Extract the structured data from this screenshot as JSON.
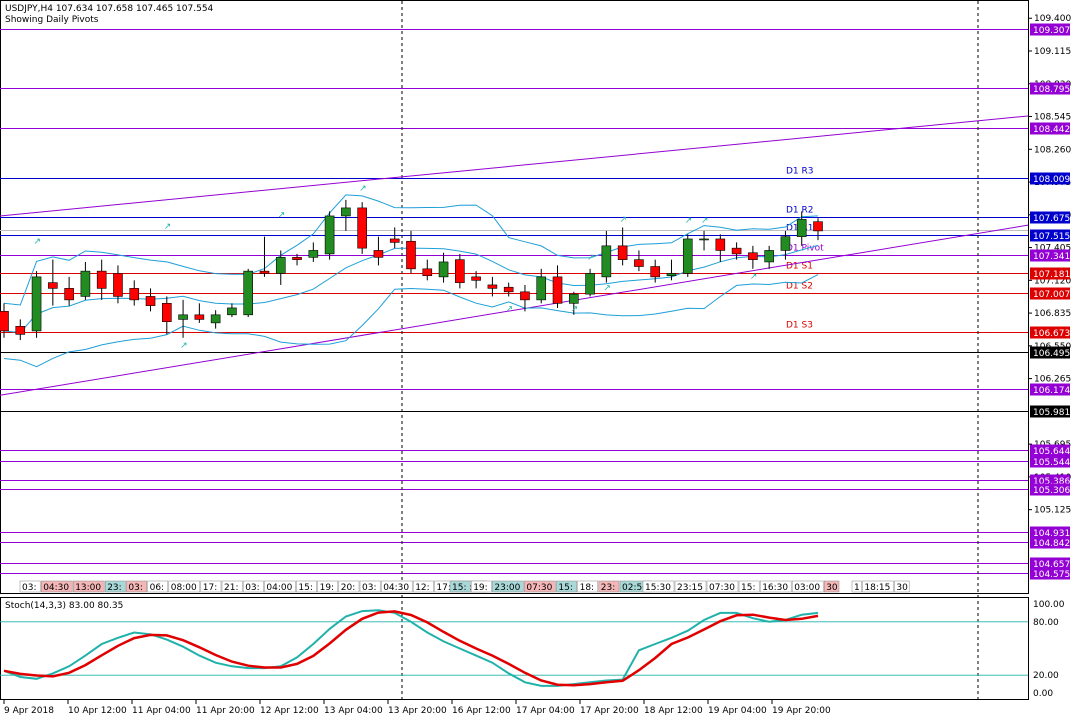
{
  "header": {
    "symbol_line": "USDJPY,H4  107.634 107.658 107.465 107.554",
    "subtitle": "Showing Daily Pivots"
  },
  "price_axis": {
    "ticks": [
      "109.400",
      "109.115",
      "108.830",
      "108.545",
      "108.260",
      "107.975",
      "107.690",
      "107.405",
      "107.120",
      "106.835",
      "106.550",
      "106.265",
      "105.695",
      "105.410",
      "105.125"
    ],
    "range": [
      104.4,
      109.55
    ]
  },
  "levels": [
    {
      "value": 109.307,
      "label": "109.307",
      "color": "#9400d3"
    },
    {
      "value": 108.795,
      "label": "108.795",
      "color": "#9400d3"
    },
    {
      "value": 108.442,
      "label": "108.442",
      "color": "#9400d3"
    },
    {
      "value": 108.009,
      "label": "108.009",
      "color": "#0000cd",
      "name": "D1  R3"
    },
    {
      "value": 107.675,
      "label": "107.675",
      "color": "#0000cd",
      "name": "D1  R2"
    },
    {
      "value": 107.515,
      "label": "107.515",
      "color": "#0000cd",
      "name": "D1  R1"
    },
    {
      "value": 107.341,
      "label": "107.341",
      "color": "#9400d3",
      "name": "D1  Pivot"
    },
    {
      "value": 107.181,
      "label": "107.181",
      "color": "#dc0000",
      "name": "D1  S1"
    },
    {
      "value": 107.007,
      "label": "107.007",
      "color": "#dc0000",
      "name": "D1  S2"
    },
    {
      "value": 106.673,
      "label": "106.673",
      "color": "#dc0000",
      "name": "D1  S3"
    },
    {
      "value": 106.495,
      "label": "106.495",
      "color": "#000000"
    },
    {
      "value": 106.174,
      "label": "106.174",
      "color": "#9400d3"
    },
    {
      "value": 105.981,
      "label": "105.981",
      "color": "#000000"
    },
    {
      "value": 105.644,
      "label": "105.644",
      "color": "#9400d3"
    },
    {
      "value": 105.544,
      "label": "105.544",
      "color": "#9400d3"
    },
    {
      "value": 105.386,
      "label": "105.386",
      "color": "#9400d3"
    },
    {
      "value": 105.306,
      "label": "105.306",
      "color": "#9400d3"
    },
    {
      "value": 104.931,
      "label": "104.931",
      "color": "#9400d3"
    },
    {
      "value": 104.842,
      "label": "104.842",
      "color": "#9400d3"
    },
    {
      "value": 104.657,
      "label": "104.657",
      "color": "#9400d3"
    },
    {
      "value": 104.575,
      "label": "104.575",
      "color": "#9400d3"
    }
  ],
  "current_price": "107.554",
  "time_labels": [
    "9 Apr 2018",
    "10 Apr 12:00",
    "11 Apr 04:00",
    "11 Apr 20:00",
    "12 Apr 12:00",
    "13 Apr 04:00",
    "13 Apr 20:00",
    "16 Apr 12:00",
    "17 Apr 04:00",
    "17 Apr 20:00",
    "18 Apr 12:00",
    "19 Apr 04:00",
    "19 Apr 20:00"
  ],
  "session_tags": [
    {
      "text": "03:",
      "color": "#ffffff"
    },
    {
      "text": "04:30",
      "color": "#f4b6b6"
    },
    {
      "text": "13:00",
      "color": "#f4b6b6"
    },
    {
      "text": "23:",
      "color": "#a8d8d8"
    },
    {
      "text": "03:",
      "color": "#f4b6b6"
    },
    {
      "text": "06:",
      "color": "#ffffff"
    },
    {
      "text": "08:00",
      "color": "#ffffff"
    },
    {
      "text": "17:",
      "color": "#ffffff"
    },
    {
      "text": "21:",
      "color": "#ffffff"
    },
    {
      "text": "03:",
      "color": "#ffffff"
    },
    {
      "text": "04:00",
      "color": "#ffffff"
    },
    {
      "text": "15:",
      "color": "#ffffff"
    },
    {
      "text": "19:",
      "color": "#ffffff"
    },
    {
      "text": "20:",
      "color": "#ffffff"
    },
    {
      "text": "03:",
      "color": "#ffffff"
    },
    {
      "text": "04:30",
      "color": "#ffffff"
    },
    {
      "text": "12:",
      "color": "#ffffff"
    },
    {
      "text": "17:",
      "color": "#ffffff"
    },
    {
      "text": "22:30",
      "color": "#ffffff"
    },
    {
      "text": "15:",
      "color": "#a8d8d8"
    },
    {
      "text": "19:",
      "color": "#ffffff"
    },
    {
      "text": "23:00",
      "color": "#a8d8d8"
    },
    {
      "text": "07:30",
      "color": "#f4b6b6"
    },
    {
      "text": "15:",
      "color": "#a8d8d8"
    },
    {
      "text": "18:",
      "color": "#ffffff"
    },
    {
      "text": "23:",
      "color": "#f4b6b6"
    },
    {
      "text": "02:50",
      "color": "#a8d8d8"
    },
    {
      "text": "15:30",
      "color": "#ffffff"
    },
    {
      "text": "23:15",
      "color": "#ffffff"
    },
    {
      "text": "07:30",
      "color": "#ffffff"
    },
    {
      "text": "15:",
      "color": "#ffffff"
    },
    {
      "text": "16:30",
      "color": "#ffffff"
    },
    {
      "text": "03:00",
      "color": "#ffffff"
    },
    {
      "text": "30",
      "color": "#f4b6b6"
    },
    {
      "text": "1",
      "color": "#ffffff"
    },
    {
      "text": "18:15",
      "color": "#ffffff"
    },
    {
      "text": "30",
      "color": "#ffffff"
    }
  ],
  "stoch": {
    "label": "Stoch(14,3,3) 83.00 80.35",
    "ticks": [
      "100.00",
      "80.00",
      "20.00",
      "0.00"
    ]
  },
  "colors": {
    "bull": "#228b22",
    "bear": "#ff0000",
    "bands": "#1e9fd8",
    "trend": "#9400d3",
    "stoch_main": "#20b2aa",
    "stoch_signal": "#e00000"
  },
  "chart_data": {
    "type": "candlestick",
    "title": "USDJPY,H4",
    "ohlc": [
      [
        106.85,
        106.92,
        106.62,
        106.68
      ],
      [
        106.72,
        106.78,
        106.6,
        106.65
      ],
      [
        106.68,
        107.2,
        106.62,
        107.15
      ],
      [
        107.1,
        107.3,
        106.9,
        107.05
      ],
      [
        107.05,
        107.15,
        106.9,
        106.95
      ],
      [
        106.98,
        107.28,
        106.95,
        107.2
      ],
      [
        107.2,
        107.3,
        106.95,
        107.05
      ],
      [
        107.18,
        107.25,
        106.92,
        106.98
      ],
      [
        107.05,
        107.12,
        106.9,
        106.95
      ],
      [
        106.98,
        107.05,
        106.85,
        106.9
      ],
      [
        106.92,
        106.98,
        106.65,
        106.76
      ],
      [
        106.78,
        106.95,
        106.62,
        106.82
      ],
      [
        106.82,
        106.92,
        106.75,
        106.78
      ],
      [
        106.75,
        106.86,
        106.7,
        106.82
      ],
      [
        106.82,
        106.92,
        106.8,
        106.88
      ],
      [
        106.82,
        107.22,
        106.8,
        107.2
      ],
      [
        107.2,
        107.5,
        107.15,
        107.18
      ],
      [
        107.18,
        107.38,
        107.08,
        107.32
      ],
      [
        107.32,
        107.35,
        107.25,
        107.3
      ],
      [
        107.32,
        107.45,
        107.28,
        107.38
      ],
      [
        107.35,
        107.72,
        107.3,
        107.68
      ],
      [
        107.68,
        107.82,
        107.55,
        107.75
      ],
      [
        107.75,
        107.8,
        107.35,
        107.4
      ],
      [
        107.38,
        107.5,
        107.25,
        107.32
      ],
      [
        107.48,
        107.58,
        107.4,
        107.45
      ],
      [
        107.46,
        107.55,
        107.18,
        107.22
      ],
      [
        107.22,
        107.3,
        107.12,
        107.16
      ],
      [
        107.15,
        107.36,
        107.1,
        107.28
      ],
      [
        107.3,
        107.35,
        107.05,
        107.1
      ],
      [
        107.15,
        107.2,
        107.05,
        107.12
      ],
      [
        107.08,
        107.15,
        106.98,
        107.05
      ],
      [
        107.06,
        107.1,
        106.98,
        107.02
      ],
      [
        107.02,
        107.08,
        106.85,
        106.95
      ],
      [
        106.95,
        107.22,
        106.92,
        107.15
      ],
      [
        107.15,
        107.25,
        106.88,
        106.92
      ],
      [
        106.92,
        107.02,
        106.82,
        107.0
      ],
      [
        107.0,
        107.22,
        106.98,
        107.18
      ],
      [
        107.15,
        107.55,
        107.1,
        107.42
      ],
      [
        107.42,
        107.58,
        107.25,
        107.3
      ],
      [
        107.3,
        107.38,
        107.2,
        107.24
      ],
      [
        107.24,
        107.3,
        107.1,
        107.15
      ],
      [
        107.16,
        107.3,
        107.12,
        107.18
      ],
      [
        107.18,
        107.52,
        107.15,
        107.48
      ],
      [
        107.48,
        107.55,
        107.38,
        107.48
      ],
      [
        107.48,
        107.52,
        107.28,
        107.38
      ],
      [
        107.4,
        107.45,
        107.3,
        107.35
      ],
      [
        107.36,
        107.42,
        107.22,
        107.3
      ],
      [
        107.28,
        107.42,
        107.22,
        107.38
      ],
      [
        107.38,
        107.55,
        107.3,
        107.5
      ],
      [
        107.5,
        107.72,
        107.42,
        107.65
      ],
      [
        107.63,
        107.66,
        107.47,
        107.55
      ]
    ],
    "ylim": [
      104.4,
      109.55
    ]
  }
}
